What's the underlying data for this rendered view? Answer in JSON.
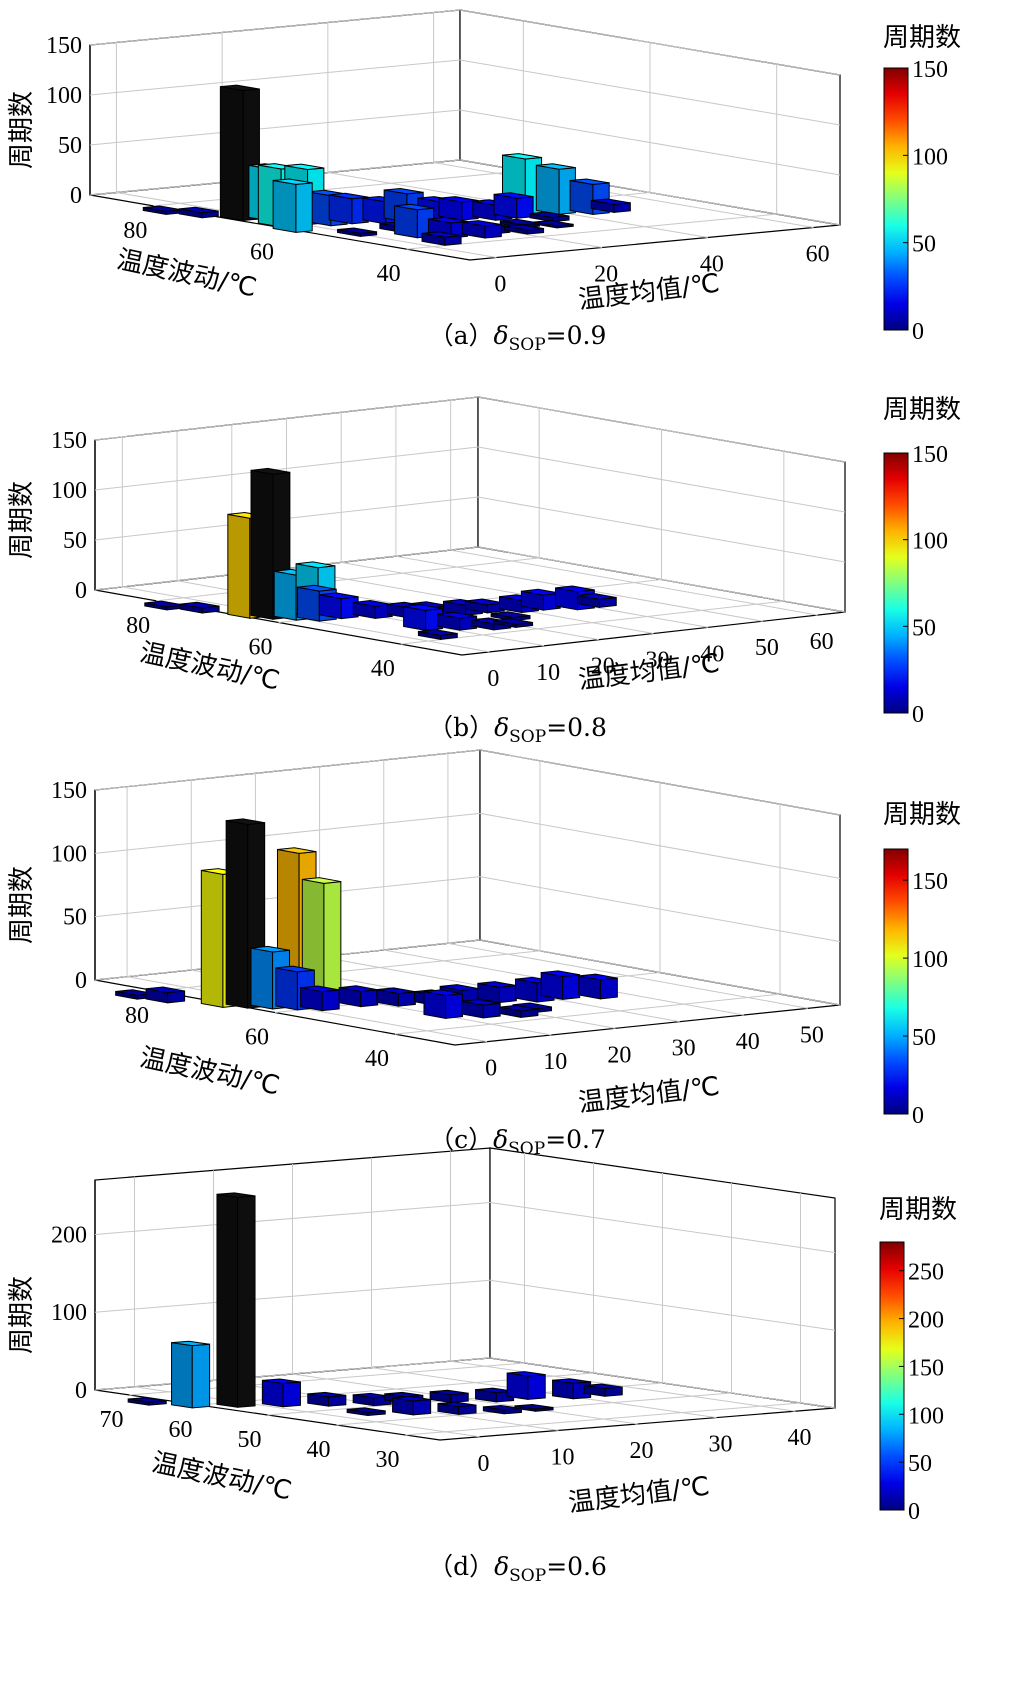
{
  "chart_data": [
    {
      "type": "bar3d",
      "caption_prefix": "（a）",
      "caption_symbol": "δ",
      "caption_sub": "SOP",
      "caption_suffix": "=0.9",
      "xlabel": "温度均值/℃",
      "ylabel": "温度波动/℃",
      "zlabel": "周期数",
      "colorbar_title": "周期数",
      "x_ticks": [
        "0",
        "20",
        "40",
        "60"
      ],
      "y_ticks": [
        "80",
        "60",
        "40"
      ],
      "z_ticks": [
        "0",
        "50",
        "100",
        "150"
      ],
      "colorbar_ticks": [
        "0",
        "50",
        "100",
        "150"
      ],
      "xlim": [
        -5,
        65
      ],
      "ylim": [
        30,
        90
      ],
      "zlim": [
        0,
        150
      ],
      "clim": [
        0,
        150
      ],
      "bars": [
        {
          "x": -3,
          "y": 68,
          "z": 130
        },
        {
          "x": -3,
          "y": 62,
          "z": 58
        },
        {
          "x": -5,
          "y": 58,
          "z": 48
        },
        {
          "x": 0,
          "y": 66,
          "z": 52
        },
        {
          "x": 2,
          "y": 62,
          "z": 55
        },
        {
          "x": 4,
          "y": 60,
          "z": 30
        },
        {
          "x": 8,
          "y": 60,
          "z": 25
        },
        {
          "x": 12,
          "y": 58,
          "z": 22
        },
        {
          "x": 16,
          "y": 58,
          "z": 28
        },
        {
          "x": 20,
          "y": 56,
          "z": 20
        },
        {
          "x": 24,
          "y": 56,
          "z": 18
        },
        {
          "x": 28,
          "y": 54,
          "z": 15
        },
        {
          "x": 32,
          "y": 54,
          "z": 20
        },
        {
          "x": 36,
          "y": 56,
          "z": 55
        },
        {
          "x": 40,
          "y": 54,
          "z": 45
        },
        {
          "x": 44,
          "y": 52,
          "z": 30
        },
        {
          "x": 48,
          "y": 52,
          "z": 8
        },
        {
          "x": 6,
          "y": 48,
          "z": 28
        },
        {
          "x": 10,
          "y": 46,
          "z": 15
        },
        {
          "x": 14,
          "y": 44,
          "z": 12
        },
        {
          "x": 18,
          "y": 46,
          "z": 6
        },
        {
          "x": 22,
          "y": 44,
          "z": 4
        },
        {
          "x": 4,
          "y": 42,
          "z": 8
        },
        {
          "x": -8,
          "y": 76,
          "z": 3
        },
        {
          "x": -6,
          "y": 72,
          "z": 5
        },
        {
          "x": 26,
          "y": 48,
          "z": 3
        },
        {
          "x": 30,
          "y": 46,
          "z": 2
        },
        {
          "x": 34,
          "y": 50,
          "z": 4
        },
        {
          "x": 0,
          "y": 52,
          "z": 3
        },
        {
          "x": 8,
          "y": 52,
          "z": 5
        },
        {
          "x": 14,
          "y": 50,
          "z": 4
        }
      ]
    },
    {
      "type": "bar3d",
      "caption_prefix": "（b）",
      "caption_symbol": "δ",
      "caption_sub": "SOP",
      "caption_suffix": "=0.8",
      "xlabel": "温度均值/℃",
      "ylabel": "温度波动/℃",
      "zlabel": "周期数",
      "colorbar_title": "周期数",
      "x_ticks": [
        "0",
        "10",
        "20",
        "30",
        "40",
        "50",
        "60"
      ],
      "y_ticks": [
        "80",
        "60",
        "40"
      ],
      "z_ticks": [
        "0",
        "50",
        "100",
        "150"
      ],
      "colorbar_ticks": [
        "0",
        "50",
        "100",
        "150"
      ],
      "xlim": [
        -5,
        65
      ],
      "ylim": [
        30,
        90
      ],
      "zlim": [
        0,
        150
      ],
      "clim": [
        0,
        150
      ],
      "bars": [
        {
          "x": -4,
          "y": 66,
          "z": 100
        },
        {
          "x": -2,
          "y": 64,
          "z": 145
        },
        {
          "x": 0,
          "y": 62,
          "z": 45
        },
        {
          "x": 2,
          "y": 60,
          "z": 30
        },
        {
          "x": 4,
          "y": 62,
          "z": 50
        },
        {
          "x": 6,
          "y": 60,
          "z": 20
        },
        {
          "x": 10,
          "y": 58,
          "z": 12
        },
        {
          "x": 14,
          "y": 56,
          "z": 10
        },
        {
          "x": 18,
          "y": 56,
          "z": 8
        },
        {
          "x": 22,
          "y": 54,
          "z": 10
        },
        {
          "x": 26,
          "y": 54,
          "z": 8
        },
        {
          "x": 30,
          "y": 52,
          "z": 12
        },
        {
          "x": 34,
          "y": 52,
          "z": 15
        },
        {
          "x": 38,
          "y": 50,
          "z": 18
        },
        {
          "x": 42,
          "y": 50,
          "z": 8
        },
        {
          "x": 8,
          "y": 48,
          "z": 20
        },
        {
          "x": 12,
          "y": 46,
          "z": 12
        },
        {
          "x": 16,
          "y": 44,
          "z": 6
        },
        {
          "x": 20,
          "y": 44,
          "z": 3
        },
        {
          "x": -8,
          "y": 76,
          "z": 3
        },
        {
          "x": -6,
          "y": 72,
          "z": 5
        },
        {
          "x": 24,
          "y": 48,
          "z": 3
        },
        {
          "x": 4,
          "y": 42,
          "z": 4
        }
      ]
    },
    {
      "type": "bar3d",
      "caption_prefix": "（c）",
      "caption_symbol": "δ",
      "caption_sub": "SOP",
      "caption_suffix": "=0.7",
      "xlabel": "温度均值/℃",
      "ylabel": "温度波动/℃",
      "zlabel": "周期数",
      "colorbar_title": "周期数",
      "x_ticks": [
        "0",
        "10",
        "20",
        "30",
        "40",
        "50"
      ],
      "y_ticks": [
        "80",
        "60",
        "40"
      ],
      "z_ticks": [
        "0",
        "50",
        "100",
        "150"
      ],
      "colorbar_ticks": [
        "0",
        "50",
        "100",
        "150"
      ],
      "xlim": [
        -5,
        55
      ],
      "ylim": [
        30,
        90
      ],
      "zlim": [
        0,
        150
      ],
      "clim": [
        0,
        170
      ],
      "bars": [
        {
          "x": -6,
          "y": 68,
          "z": 105
        },
        {
          "x": -4,
          "y": 66,
          "z": 145
        },
        {
          "x": -2,
          "y": 64,
          "z": 45
        },
        {
          "x": 0,
          "y": 62,
          "z": 30
        },
        {
          "x": 4,
          "y": 66,
          "z": 118
        },
        {
          "x": 6,
          "y": 64,
          "z": 95
        },
        {
          "x": 8,
          "y": 60,
          "z": 12
        },
        {
          "x": 2,
          "y": 60,
          "z": 15
        },
        {
          "x": 12,
          "y": 58,
          "z": 10
        },
        {
          "x": 16,
          "y": 56,
          "z": 8
        },
        {
          "x": 20,
          "y": 56,
          "z": 10
        },
        {
          "x": 24,
          "y": 54,
          "z": 12
        },
        {
          "x": 28,
          "y": 52,
          "z": 15
        },
        {
          "x": 32,
          "y": 52,
          "z": 18
        },
        {
          "x": 36,
          "y": 50,
          "z": 15
        },
        {
          "x": 10,
          "y": 48,
          "z": 18
        },
        {
          "x": 14,
          "y": 46,
          "z": 10
        },
        {
          "x": 18,
          "y": 44,
          "z": 5
        },
        {
          "x": -9,
          "y": 74,
          "z": 8
        },
        {
          "x": -10,
          "y": 78,
          "z": 3
        },
        {
          "x": 22,
          "y": 46,
          "z": 3
        }
      ]
    },
    {
      "type": "bar3d",
      "caption_prefix": "（d）",
      "caption_symbol": "δ",
      "caption_sub": "SOP",
      "caption_suffix": "=0.6",
      "xlabel": "温度均值/℃",
      "ylabel": "温度波动/℃",
      "zlabel": "周期数",
      "colorbar_title": "周期数",
      "x_ticks": [
        "0",
        "10",
        "20",
        "30",
        "40"
      ],
      "y_ticks": [
        "70",
        "60",
        "50",
        "40",
        "30"
      ],
      "z_ticks": [
        "0",
        "100",
        "200"
      ],
      "colorbar_ticks": [
        "0",
        "50",
        "100",
        "150",
        "200",
        "250"
      ],
      "xlim": [
        -5,
        45
      ],
      "ylim": [
        25,
        75
      ],
      "zlim": [
        0,
        270
      ],
      "clim": [
        0,
        280
      ],
      "bars": [
        {
          "x": -6,
          "y": 60,
          "z": 80
        },
        {
          "x": -2,
          "y": 58,
          "z": 270
        },
        {
          "x": 2,
          "y": 56,
          "z": 30
        },
        {
          "x": 6,
          "y": 54,
          "z": 12
        },
        {
          "x": 10,
          "y": 52,
          "z": 10
        },
        {
          "x": 14,
          "y": 52,
          "z": 8
        },
        {
          "x": 18,
          "y": 50,
          "z": 10
        },
        {
          "x": 22,
          "y": 48,
          "z": 12
        },
        {
          "x": 26,
          "y": 48,
          "z": 30
        },
        {
          "x": 30,
          "y": 46,
          "z": 20
        },
        {
          "x": 34,
          "y": 46,
          "z": 10
        },
        {
          "x": 8,
          "y": 44,
          "z": 18
        },
        {
          "x": 12,
          "y": 42,
          "z": 10
        },
        {
          "x": 16,
          "y": 40,
          "z": 5
        },
        {
          "x": -8,
          "y": 64,
          "z": 4
        },
        {
          "x": 20,
          "y": 40,
          "z": 3
        },
        {
          "x": 4,
          "y": 46,
          "z": 4
        }
      ]
    }
  ]
}
